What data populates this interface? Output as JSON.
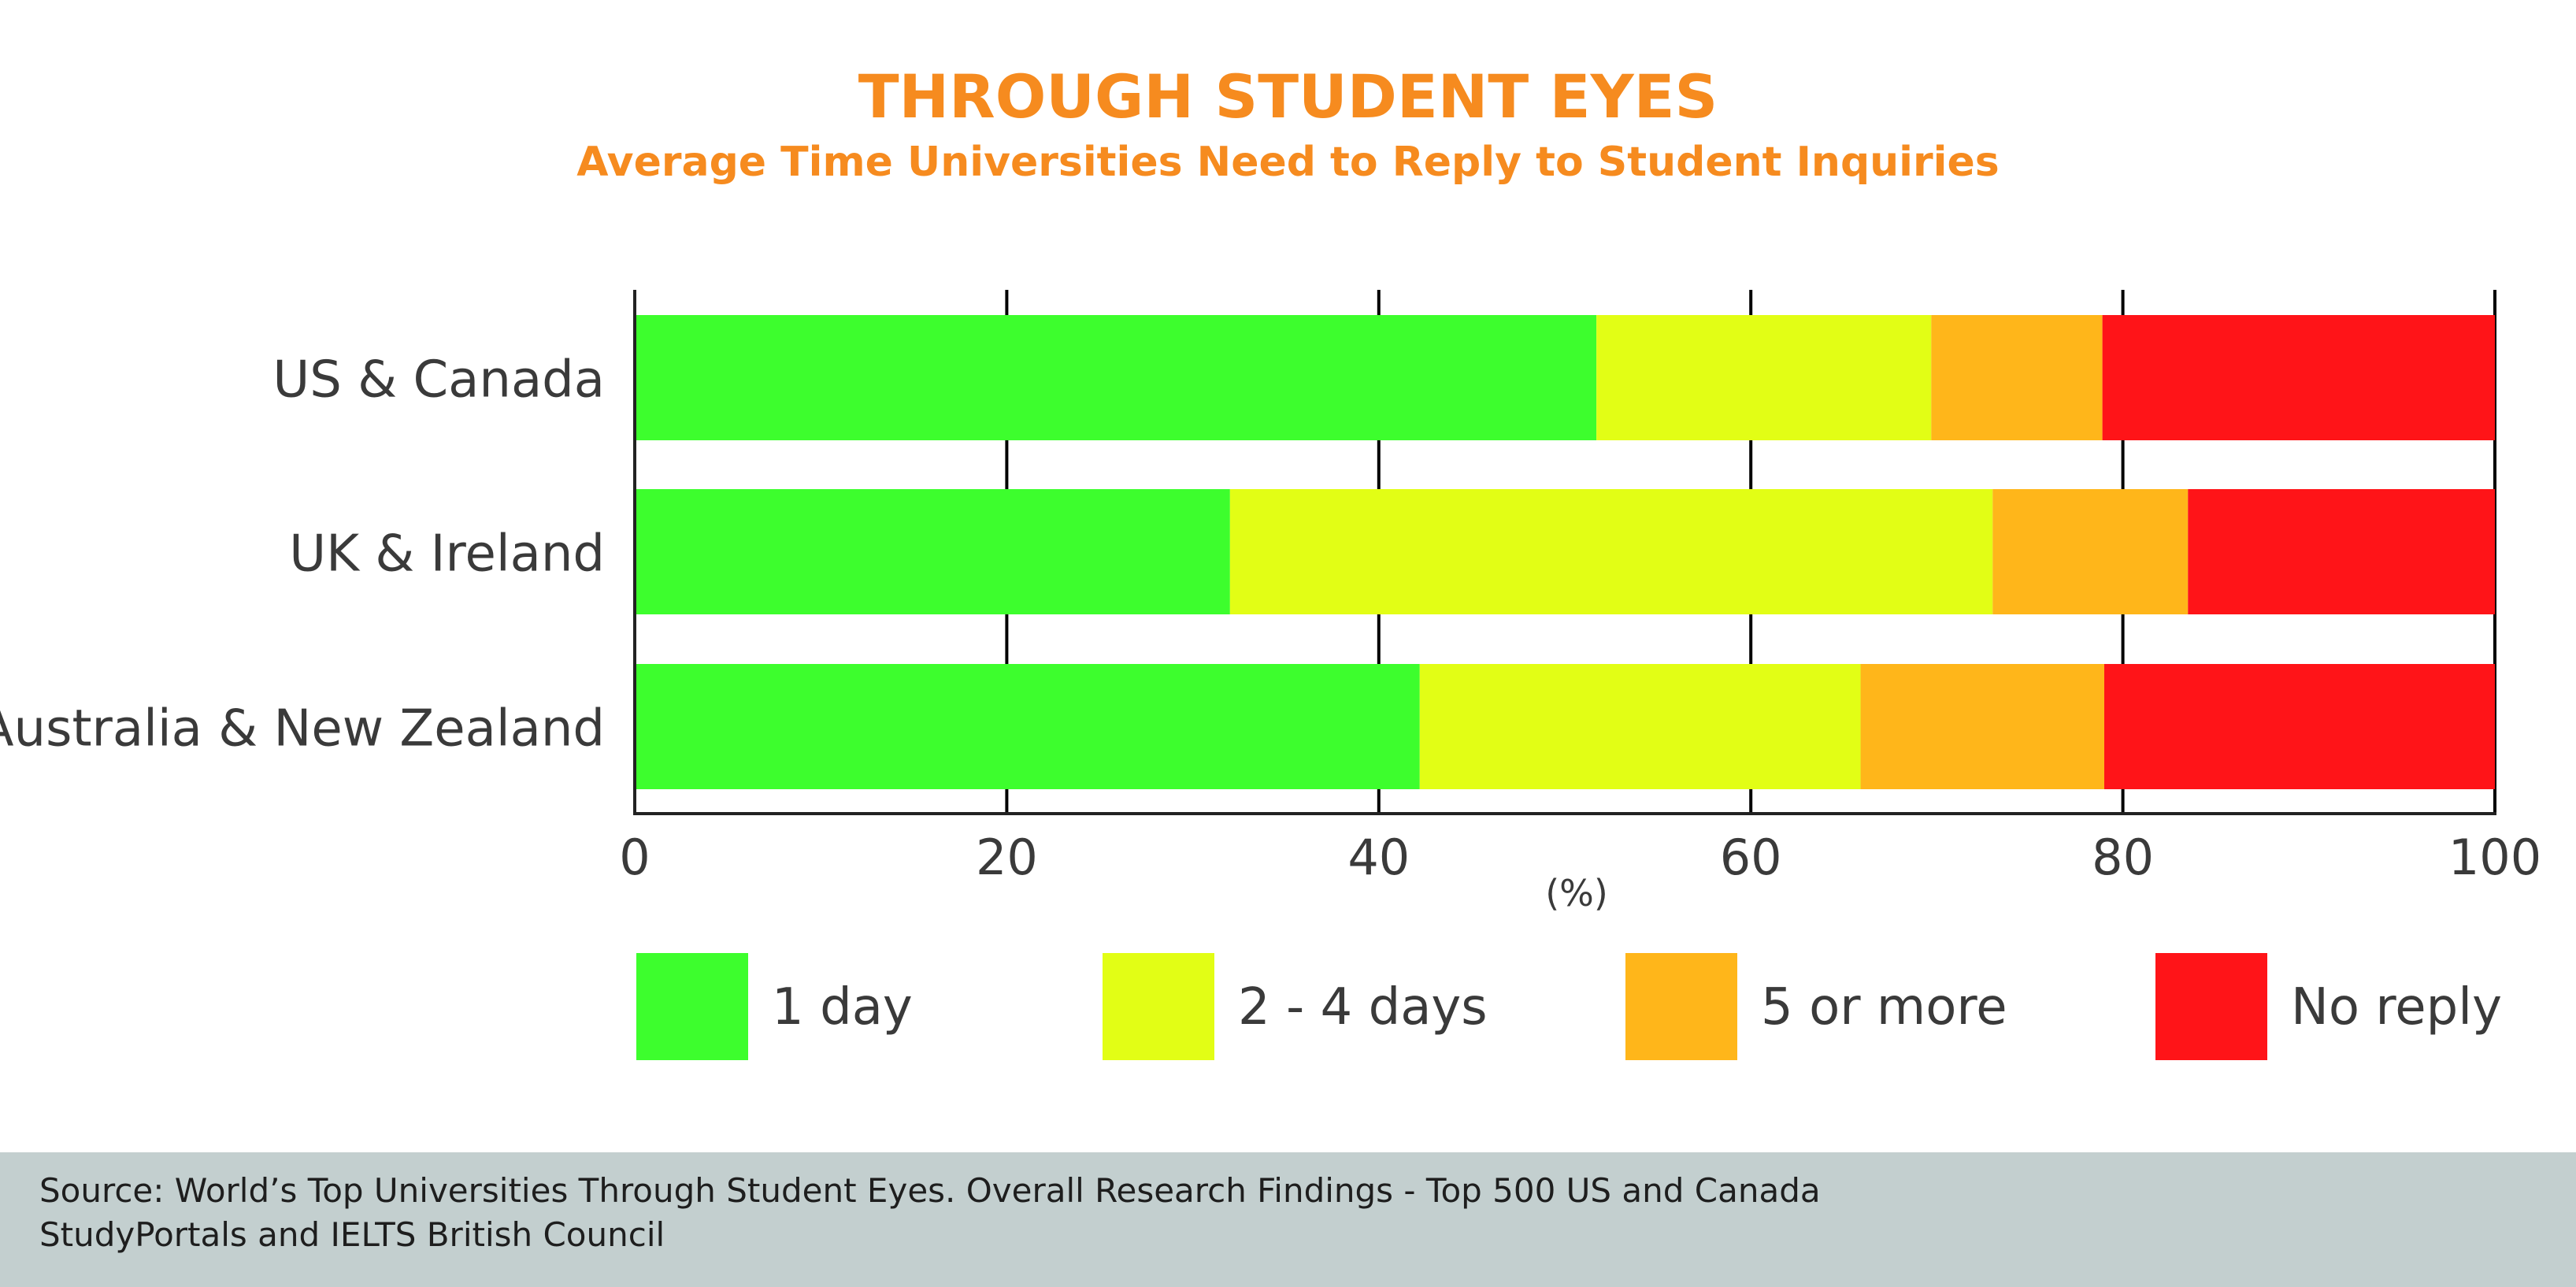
{
  "chart_data": {
    "type": "bar",
    "orientation": "horizontal",
    "stacked": true,
    "title": "THROUGH STUDENT EYES",
    "subtitle": "Average Time Universities Need to Reply to Student Inquiries",
    "categories": [
      "US & Canada",
      "UK & Ireland",
      "Australia & New Zealand"
    ],
    "series": [
      {
        "name": "1 day",
        "color": "#3dfe2d",
        "values": [
          51.7,
          32,
          42.2
        ]
      },
      {
        "name": "2 - 4 days",
        "color": "#e2fe15",
        "values": [
          18.0,
          41,
          23.7
        ]
      },
      {
        "name": "5 or more",
        "color": "#ffb61a",
        "values": [
          9.2,
          10.5,
          13.1
        ]
      },
      {
        "name": "No reply",
        "color": "#ff1418",
        "values": [
          21.1,
          16.5,
          21.0
        ]
      }
    ],
    "xlabel": "(%)",
    "ylabel": "",
    "xlim": [
      0,
      100
    ],
    "xticks": [
      0,
      20,
      40,
      60,
      80,
      100
    ],
    "grid": "vertical",
    "legend": "bottom"
  },
  "footer": {
    "source_line": "Source: World’s Top Universities Through Student Eyes. Overall Research Findings - Top 500 US and Canada",
    "credit_line": "StudyPortals and IELTS British Council"
  }
}
